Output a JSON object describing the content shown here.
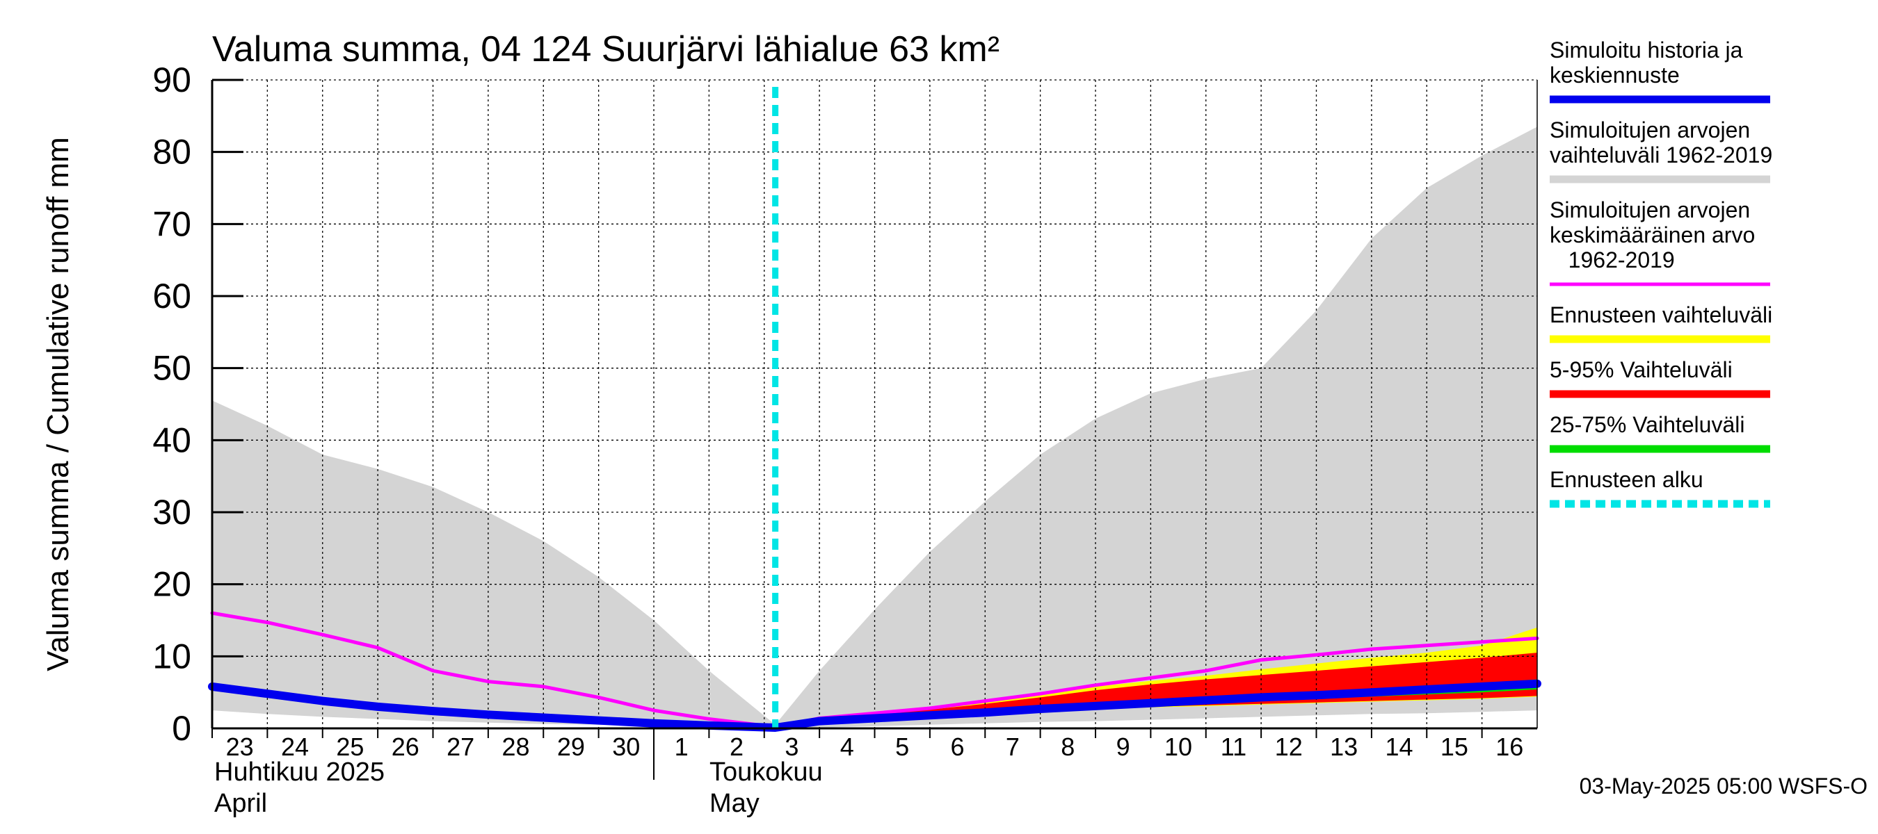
{
  "chart_data": {
    "type": "area",
    "title": "Valuma summa, 04 124 Suurjärvi lähialue 63 km²",
    "ylabel": "Valuma summa / Cumulative runoff    mm",
    "ylim": [
      0,
      90
    ],
    "yticks": [
      "0",
      "10",
      "20",
      "30",
      "40",
      "50",
      "60",
      "70",
      "80",
      "90"
    ],
    "x_day_labels": [
      "23",
      "24",
      "25",
      "26",
      "27",
      "28",
      "29",
      "30",
      "1",
      "2",
      "3",
      "4",
      "5",
      "6",
      "7",
      "8",
      "9",
      "10",
      "11",
      "12",
      "13",
      "14",
      "15",
      "16"
    ],
    "month_labels": [
      {
        "fi": "Huhtikuu  2025",
        "en": "April"
      },
      {
        "fi": "Toukokuu",
        "en": "May"
      }
    ],
    "x_range_days": [
      0,
      24
    ],
    "forecast_start_day": 10.2,
    "grid": true,
    "series": [
      {
        "name": "Simuloitujen arvojen vaihteluväli 1962-2019",
        "kind": "band",
        "color": "#d4d4d4",
        "x": [
          0,
          1,
          2,
          3,
          4,
          5,
          6,
          7,
          8,
          9,
          10.2,
          11,
          12,
          13,
          14,
          15,
          16,
          17,
          18,
          19,
          20,
          21,
          22,
          23,
          24
        ],
        "upper": [
          45.5,
          42,
          38,
          36,
          33.5,
          30,
          26,
          21,
          15,
          8,
          0.5,
          8,
          16.5,
          24.5,
          31.5,
          38,
          43,
          46.5,
          48.5,
          50,
          58,
          68,
          75,
          79.5,
          83.5
        ],
        "lower": [
          2.5,
          2,
          1.6,
          1.3,
          1.0,
          0.8,
          0.6,
          0.5,
          0.4,
          0.2,
          0,
          0.1,
          0.3,
          0.5,
          0.7,
          0.9,
          1.0,
          1.2,
          1.4,
          1.6,
          1.8,
          2.0,
          2.1,
          2.3,
          2.5
        ]
      },
      {
        "name": "Ennusteen vaihteluväli",
        "kind": "band",
        "color": "#ffff00",
        "x": [
          10.2,
          11,
          12,
          13,
          14,
          15,
          16,
          17,
          18,
          19,
          20,
          21,
          22,
          23,
          24
        ],
        "upper": [
          0.5,
          1.5,
          2.2,
          2.8,
          3.8,
          4.8,
          5.8,
          6.6,
          7.3,
          8.2,
          9.0,
          9.8,
          10.5,
          11.5,
          14.0
        ],
        "lower": [
          0,
          0.8,
          1.1,
          1.5,
          1.9,
          2.3,
          2.6,
          2.9,
          3.1,
          3.3,
          3.5,
          3.7,
          3.9,
          4.1,
          4.4
        ]
      },
      {
        "name": "5-95% Vaihteluväli",
        "kind": "band",
        "color": "#ff0000",
        "x": [
          10.2,
          11,
          12,
          13,
          14,
          15,
          16,
          17,
          18,
          19,
          20,
          21,
          22,
          23,
          24
        ],
        "upper": [
          0.5,
          1.3,
          2.0,
          2.6,
          3.4,
          4.3,
          5.3,
          6.1,
          6.8,
          7.4,
          8.0,
          8.6,
          9.2,
          9.8,
          10.5
        ],
        "lower": [
          0,
          0.9,
          1.2,
          1.6,
          2.0,
          2.4,
          2.7,
          3.0,
          3.2,
          3.4,
          3.6,
          3.8,
          4.0,
          4.2,
          4.5
        ]
      },
      {
        "name": "25-75% Vaihteluväli",
        "kind": "band",
        "color": "#00dd00",
        "x": [
          10.2,
          11,
          12,
          13,
          14,
          15,
          16,
          17,
          18,
          19,
          20,
          21,
          22,
          23,
          24
        ],
        "upper": [
          0.5,
          1.2,
          1.7,
          2.1,
          2.6,
          3.0,
          3.4,
          3.8,
          4.2,
          4.6,
          5.0,
          5.4,
          5.8,
          6.3,
          6.8
        ],
        "lower": [
          0.2,
          1.0,
          1.4,
          1.8,
          2.2,
          2.6,
          2.9,
          3.2,
          3.5,
          3.8,
          4.1,
          4.4,
          4.7,
          5.0,
          5.4
        ]
      },
      {
        "name": "Simuloitujen arvojen keskimääräinen arvo 1962-2019",
        "kind": "line",
        "color": "#ff00ff",
        "x": [
          0,
          1,
          2,
          3,
          4,
          5,
          6,
          7,
          8,
          9,
          10.2,
          11,
          12,
          13,
          14,
          15,
          16,
          17,
          18,
          19,
          20,
          21,
          22,
          23,
          24
        ],
        "values": [
          16,
          14.7,
          13,
          11.2,
          8,
          6.5,
          5.8,
          4.3,
          2.5,
          1.3,
          0.2,
          1.4,
          2.1,
          2.8,
          3.8,
          4.8,
          6.0,
          7.0,
          8.0,
          9.5,
          10.2,
          11.0,
          11.5,
          12.0,
          12.5
        ]
      },
      {
        "name": "Simuloitu historia ja keskiennuste",
        "kind": "line",
        "color": "#0000ee",
        "x": [
          0,
          1,
          2,
          3,
          4,
          5,
          6,
          7,
          8,
          9,
          10.2,
          11,
          12,
          13,
          14,
          15,
          16,
          17,
          18,
          19,
          20,
          21,
          22,
          23,
          24
        ],
        "values": [
          5.8,
          4.8,
          3.8,
          3.0,
          2.4,
          1.9,
          1.5,
          1.1,
          0.7,
          0.4,
          0.1,
          1.0,
          1.4,
          1.8,
          2.2,
          2.7,
          3.1,
          3.5,
          3.9,
          4.3,
          4.6,
          5.0,
          5.4,
          5.8,
          6.2
        ]
      }
    ],
    "legend": [
      {
        "lines": [
          "Simuloitu historia ja",
          "keskiennuste"
        ],
        "color": "#0000ee",
        "style": "solid"
      },
      {
        "lines": [
          "Simuloitujen arvojen",
          "vaihteluväli 1962-2019"
        ],
        "color": "#d4d4d4",
        "style": "solid"
      },
      {
        "lines": [
          "Simuloitujen arvojen",
          "keskimääräinen arvo",
          "   1962-2019"
        ],
        "color": "#ff00ff",
        "style": "solid"
      },
      {
        "lines": [
          "Ennusteen vaihteluväli"
        ],
        "color": "#ffff00",
        "style": "solid"
      },
      {
        "lines": [
          "5-95% Vaihteluväli"
        ],
        "color": "#ff0000",
        "style": "solid"
      },
      {
        "lines": [
          "25-75% Vaihteluväli"
        ],
        "color": "#00dd00",
        "style": "solid"
      },
      {
        "lines": [
          "Ennusteen alku"
        ],
        "color": "#00e5e5",
        "style": "dashed"
      }
    ],
    "legend_position": "right",
    "footer": "03-May-2025 05:00 WSFS-O"
  }
}
